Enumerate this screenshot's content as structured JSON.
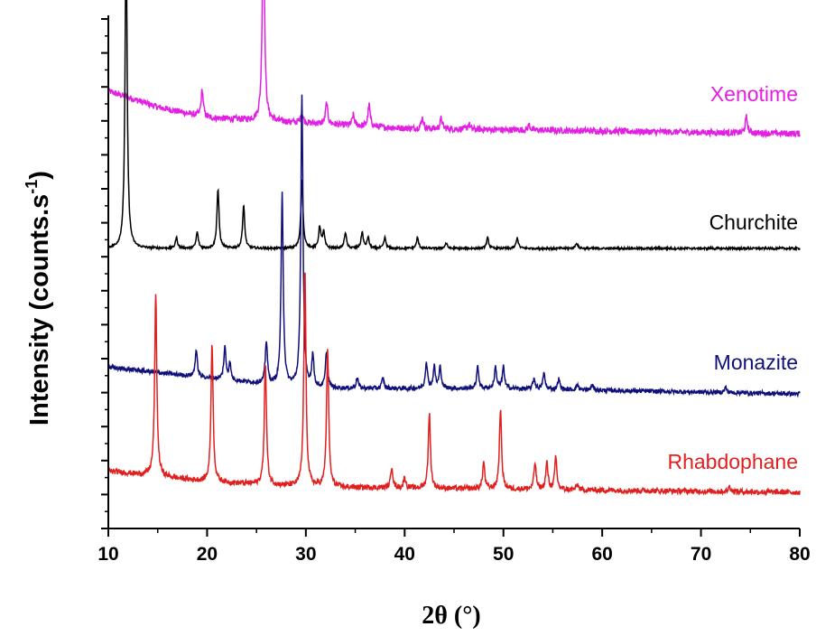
{
  "chart_data": {
    "type": "line",
    "xlabel": "2θ (°)",
    "ylabel": "Intensity (counts.s-1)",
    "ylabel_main": "Intensity (counts.s",
    "ylabel_sup": "-1",
    "ylabel_close": ")",
    "xlim": [
      10,
      80
    ],
    "xticks": [
      10,
      20,
      30,
      40,
      50,
      60,
      70,
      80
    ],
    "xtick_labels": [
      "10",
      "20",
      "30",
      "40",
      "50",
      "60",
      "70",
      "80"
    ],
    "grid": false,
    "y_tick_labels_shown": false,
    "series": [
      {
        "name": "Xenotime",
        "color": "#e21fe2",
        "baseline": [
          [
            10,
            0.08
          ],
          [
            15,
            0.05
          ],
          [
            20,
            0.03
          ],
          [
            30,
            0.02
          ],
          [
            40,
            0.01
          ],
          [
            80,
            0.0
          ]
        ],
        "peaks": [
          [
            19.5,
            0.05
          ],
          [
            25.7,
            0.41
          ],
          [
            29.6,
            0.02
          ],
          [
            32.1,
            0.04
          ],
          [
            34.8,
            0.02
          ],
          [
            36.4,
            0.04
          ],
          [
            41.8,
            0.02
          ],
          [
            43.7,
            0.02
          ],
          [
            46.5,
            0.01
          ],
          [
            52.6,
            0.01
          ],
          [
            74.6,
            0.03
          ]
        ],
        "noise": 0.006
      },
      {
        "name": "Churchite",
        "color": "#000000",
        "baseline": [
          [
            10,
            0.0
          ],
          [
            80,
            0.0
          ]
        ],
        "peaks": [
          [
            11.8,
            0.58
          ],
          [
            16.9,
            0.02
          ],
          [
            19.0,
            0.03
          ],
          [
            21.1,
            0.11
          ],
          [
            23.7,
            0.08
          ],
          [
            29.6,
            0.13
          ],
          [
            31.4,
            0.04
          ],
          [
            31.8,
            0.03
          ],
          [
            34.0,
            0.03
          ],
          [
            35.7,
            0.03
          ],
          [
            36.3,
            0.02
          ],
          [
            38.0,
            0.02
          ],
          [
            41.3,
            0.02
          ],
          [
            44.2,
            0.01
          ],
          [
            48.4,
            0.02
          ],
          [
            51.4,
            0.02
          ],
          [
            57.4,
            0.01
          ]
        ],
        "noise": 0.002
      },
      {
        "name": "Monazite",
        "color": "#10107a",
        "baseline": [
          [
            10,
            0.05
          ],
          [
            20,
            0.03
          ],
          [
            30,
            0.01
          ],
          [
            50,
            0.01
          ],
          [
            80,
            0.0
          ]
        ],
        "peaks": [
          [
            18.9,
            0.05
          ],
          [
            21.8,
            0.06
          ],
          [
            22.3,
            0.03
          ],
          [
            26.0,
            0.08
          ],
          [
            27.6,
            0.36
          ],
          [
            29.6,
            0.55
          ],
          [
            30.7,
            0.06
          ],
          [
            32.1,
            0.07
          ],
          [
            35.2,
            0.02
          ],
          [
            37.8,
            0.02
          ],
          [
            42.2,
            0.05
          ],
          [
            43.0,
            0.04
          ],
          [
            43.6,
            0.04
          ],
          [
            47.4,
            0.04
          ],
          [
            49.2,
            0.04
          ],
          [
            50.0,
            0.04
          ],
          [
            53.1,
            0.02
          ],
          [
            54.1,
            0.03
          ],
          [
            55.6,
            0.02
          ],
          [
            57.5,
            0.01
          ],
          [
            59.0,
            0.01
          ],
          [
            72.5,
            0.01
          ]
        ],
        "noise": 0.004
      },
      {
        "name": "Rhabdophane",
        "color": "#e01f1f",
        "baseline": [
          [
            10,
            0.04
          ],
          [
            20,
            0.02
          ],
          [
            30,
            0.01
          ],
          [
            80,
            0.0
          ]
        ],
        "peaks": [
          [
            14.8,
            0.34
          ],
          [
            20.5,
            0.26
          ],
          [
            25.9,
            0.23
          ],
          [
            29.9,
            0.41
          ],
          [
            32.2,
            0.26
          ],
          [
            38.7,
            0.04
          ],
          [
            40.0,
            0.02
          ],
          [
            42.5,
            0.14
          ],
          [
            48.0,
            0.05
          ],
          [
            49.7,
            0.15
          ],
          [
            53.2,
            0.05
          ],
          [
            54.4,
            0.05
          ],
          [
            55.3,
            0.06
          ],
          [
            57.5,
            0.01
          ],
          [
            72.9,
            0.01
          ]
        ],
        "noise": 0.005
      }
    ]
  }
}
